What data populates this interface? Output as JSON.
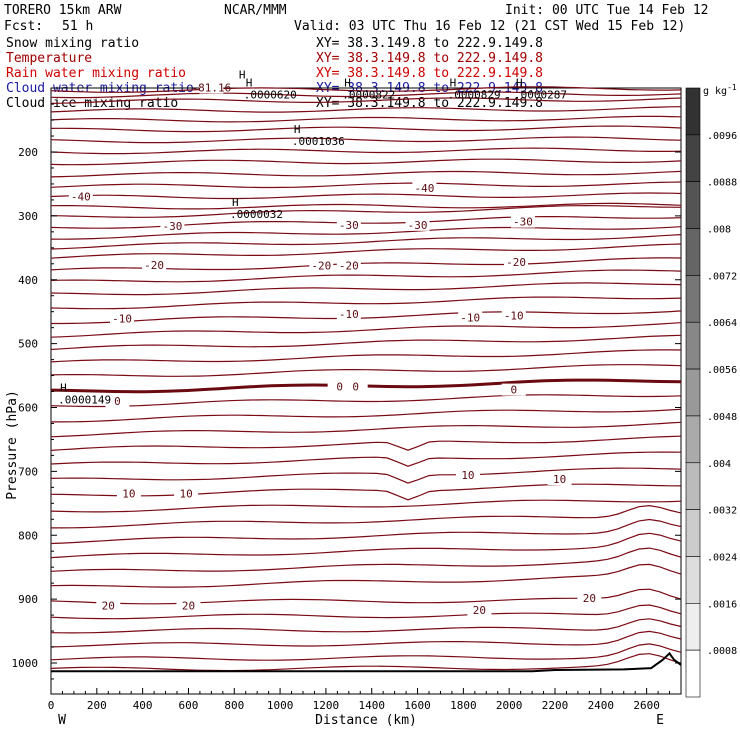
{
  "header": {
    "model": "TORERO  15km ARW",
    "org": "NCAR/MMM",
    "init": "Init: 00 UTC Tue 14 Feb 12",
    "fcst_label": "Fcst:",
    "fcst_value": "51 h",
    "valid": "Valid: 03 UTC Thu 16 Feb 12 (21 CST Wed 15 Feb 12)"
  },
  "colors": {
    "snow": "#000000",
    "temperature": "#a00000",
    "rain": "#d00000",
    "cloud_water": "#1a1aa0",
    "cloud_ice": "#000000",
    "contour": "#7a0a14"
  },
  "chart_data": {
    "type": "cross-section",
    "title": "TORERO 15km ARW",
    "legend": [
      {
        "name": "Snow mixing ratio",
        "xy": "XY=  38.3.149.8 to 222.9.149.8",
        "color": "#000000"
      },
      {
        "name": "Temperature",
        "xy": "XY=  38.3.149.8 to 222.9.149.8",
        "color": "#a00000"
      },
      {
        "name": "Rain water mixing ratio",
        "xy": "XY=  38.3.149.8 to 222.9.149.8",
        "color": "#d00000"
      },
      {
        "name": "Cloud water mixing ratio",
        "xy": "XY=  38.3.149.8 to 222.9.149.8",
        "color": "#1a1aa0"
      },
      {
        "name": "Cloud ice mixing ratio",
        "xy": "XY=  38.3.149.8 to 222.9.149.8",
        "color": "#000000"
      }
    ],
    "xlabel": "Distance (km)",
    "ylabel": "Pressure (hPa)",
    "x_ticks": [
      0,
      200,
      400,
      600,
      800,
      1000,
      1200,
      1400,
      1600,
      1800,
      2000,
      2200,
      2400,
      2600
    ],
    "xlim": [
      0,
      2750
    ],
    "y_ticks": [
      200,
      300,
      400,
      500,
      600,
      700,
      800,
      900,
      1000
    ],
    "ylim": [
      1050,
      88
    ],
    "x_end_labels": {
      "left": "W",
      "right": "E"
    },
    "colorbar": {
      "units": "g kg",
      "units_exp": "-1",
      "ticks": [
        ".0096",
        ".0088",
        ".008",
        ".0072",
        ".0064",
        ".0056",
        ".0048",
        ".004",
        ".0032",
        ".0024",
        ".0016",
        ".0008"
      ]
    },
    "contour_labels": [
      {
        "text": "-81.16",
        "x": 700,
        "p": 99
      },
      {
        "text": "-40",
        "x": 130,
        "p": 270
      },
      {
        "text": "-40",
        "x": 1630,
        "p": 256
      },
      {
        "text": "-30",
        "x": 530,
        "p": 316
      },
      {
        "text": "-30",
        "x": 1300,
        "p": 314
      },
      {
        "text": "-30",
        "x": 1600,
        "p": 314
      },
      {
        "text": "-30",
        "x": 2060,
        "p": 309
      },
      {
        "text": "-20",
        "x": 450,
        "p": 377
      },
      {
        "text": "-20",
        "x": 1180,
        "p": 378
      },
      {
        "text": "-20",
        "x": 1300,
        "p": 378
      },
      {
        "text": "-20",
        "x": 2030,
        "p": 372
      },
      {
        "text": "-10",
        "x": 310,
        "p": 461
      },
      {
        "text": "-10",
        "x": 1300,
        "p": 454
      },
      {
        "text": "-10",
        "x": 1830,
        "p": 459
      },
      {
        "text": "-10",
        "x": 2020,
        "p": 456
      },
      {
        "text": "0",
        "x": 290,
        "p": 590
      },
      {
        "text": "0",
        "x": 1260,
        "p": 567
      },
      {
        "text": "0",
        "x": 1330,
        "p": 567
      },
      {
        "text": "0",
        "x": 2020,
        "p": 572
      },
      {
        "text": "10",
        "x": 340,
        "p": 735
      },
      {
        "text": "10",
        "x": 590,
        "p": 735
      },
      {
        "text": "10",
        "x": 1820,
        "p": 706
      },
      {
        "text": "10",
        "x": 2220,
        "p": 712
      },
      {
        "text": "20",
        "x": 250,
        "p": 910
      },
      {
        "text": "20",
        "x": 600,
        "p": 910
      },
      {
        "text": "20",
        "x": 1870,
        "p": 917
      },
      {
        "text": "20",
        "x": 2350,
        "p": 898
      }
    ],
    "h_markers": [
      {
        "h": "H",
        "value": "",
        "x": 820,
        "p": 90
      },
      {
        "h": "H",
        "value": ".0000620",
        "x": 850,
        "p": 102
      },
      {
        "h": "H",
        "value": ".0000822",
        "x": 1280,
        "p": 102
      },
      {
        "h": "H",
        "value": ".0000829",
        "x": 1740,
        "p": 102
      },
      {
        "h": "H",
        "value": ".0000287",
        "x": 2030,
        "p": 102
      },
      {
        "h": "H",
        "value": ".0001036",
        "x": 1060,
        "p": 175
      },
      {
        "h": "H",
        "value": ".0000032",
        "x": 790,
        "p": 289
      },
      {
        "h": "H",
        "value": ".0000149",
        "x": 40,
        "p": 580
      }
    ]
  }
}
